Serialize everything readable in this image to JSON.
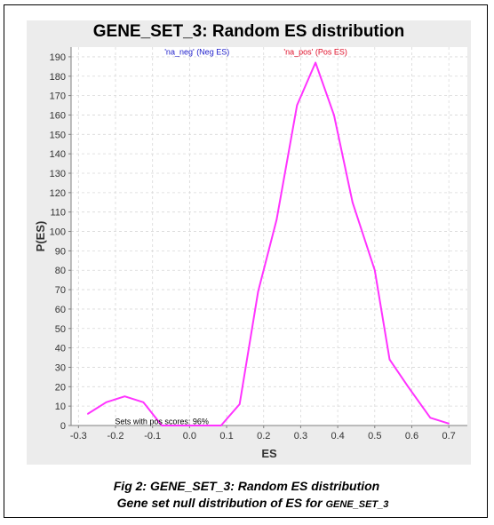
{
  "caption": {
    "line1": "Fig 2: GENE_SET_3: Random ES distribution",
    "line2_prefix": "Gene set null distribution of ES for ",
    "line2_gene_set": "GENE_SET_3"
  },
  "chart_data": {
    "type": "line",
    "title": "GENE_SET_3: Random ES distribution",
    "xlabel": "ES",
    "ylabel": "P(ES)",
    "xlim": [
      -0.32,
      0.75
    ],
    "ylim": [
      0,
      195
    ],
    "xticks": [
      -0.3,
      -0.2,
      -0.1,
      0.0,
      0.1,
      0.2,
      0.3,
      0.4,
      0.5,
      0.6,
      0.7
    ],
    "xtick_labels": [
      "-0.3",
      "-0.2",
      "-0.1",
      "0.0",
      "0.1",
      "0.2",
      "0.3",
      "0.4",
      "0.5",
      "0.6",
      "0.7"
    ],
    "yticks": [
      0,
      10,
      20,
      30,
      40,
      50,
      60,
      70,
      80,
      90,
      100,
      110,
      120,
      130,
      140,
      150,
      160,
      170,
      180,
      190
    ],
    "grid": true,
    "series": [
      {
        "color": "#ff33ff",
        "x": [
          -0.275,
          -0.225,
          -0.175,
          -0.125,
          -0.075,
          -0.025,
          0.025,
          0.085,
          0.135,
          0.185,
          0.235,
          0.29,
          0.34,
          0.39,
          0.44,
          0.5,
          0.54,
          0.59,
          0.65,
          0.7
        ],
        "y": [
          6,
          12,
          15,
          12,
          0,
          0,
          0,
          0,
          11,
          69,
          106,
          165,
          187,
          160,
          115,
          80,
          34,
          20,
          4,
          1
        ]
      }
    ],
    "annotations": [
      {
        "text": "'na_neg' (Neg ES)",
        "color": "#2020cc",
        "x": 0.02,
        "y": 193
      },
      {
        "text": "'na_pos' (Pos ES)",
        "color": "#e0102a",
        "x": 0.34,
        "y": 193
      },
      {
        "text": "Sets with pos scores: 96%",
        "color": "#000000",
        "x": -0.075,
        "y": 2.5
      }
    ]
  }
}
